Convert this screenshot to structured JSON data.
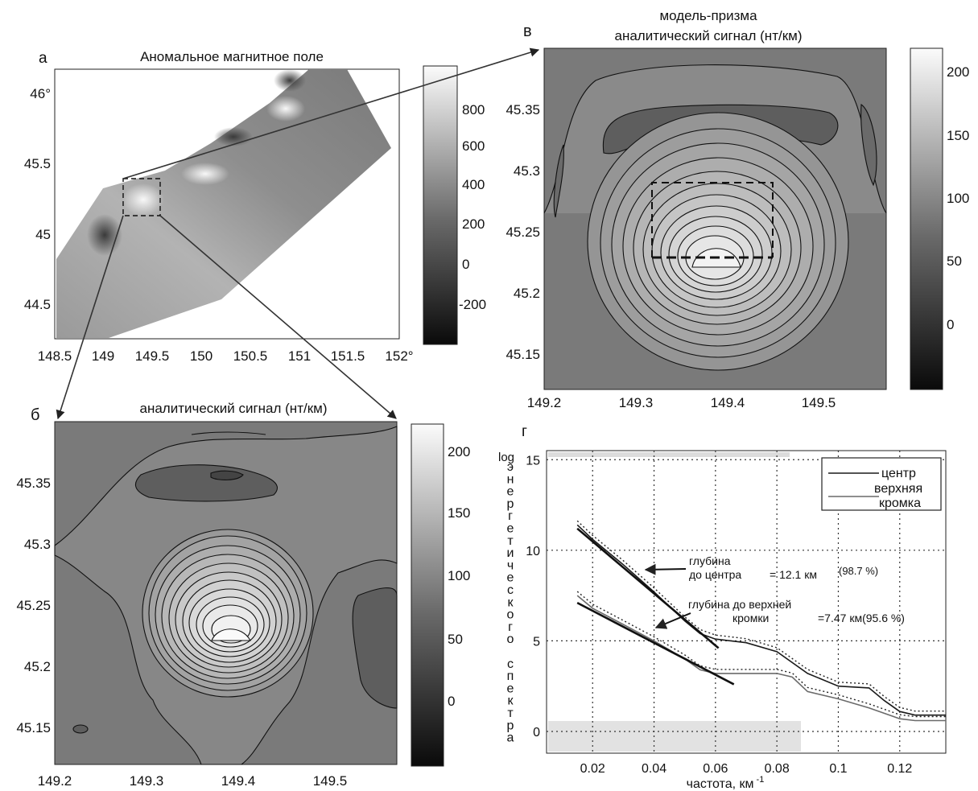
{
  "panel_a": {
    "letter": "а",
    "title": "Аномальное магнитное поле",
    "x_ticks": [
      "148.5",
      "149",
      "149.5",
      "150",
      "150.5",
      "151",
      "151.5",
      "152°"
    ],
    "y_ticks": [
      "46°",
      "45.5",
      "45",
      "44.5"
    ],
    "colorbar_ticks": [
      "800",
      "600",
      "400",
      "200",
      "0",
      "-200"
    ]
  },
  "panel_b": {
    "letter": "б",
    "title": "аналитический сигнал (нт/км)",
    "x_ticks": [
      "149.2",
      "149.3",
      "149.4",
      "149.5"
    ],
    "y_ticks": [
      "45.35",
      "45.3",
      "45.25",
      "45.2",
      "45.15"
    ],
    "colorbar_ticks": [
      "200",
      "150",
      "100",
      "50",
      "0"
    ]
  },
  "panel_v": {
    "letter": "в",
    "title_line1": "модель-призма",
    "title_line2": "аналитический сигнал (нт/км)",
    "x_ticks": [
      "149.2",
      "149.3",
      "149.4",
      "149.5"
    ],
    "y_ticks": [
      "45.35",
      "45.3",
      "45.25",
      "45.2",
      "45.15"
    ],
    "colorbar_ticks": [
      "200",
      "150",
      "100",
      "50",
      "0"
    ]
  },
  "chart_data": {
    "type": "line",
    "panel_letter": "г",
    "xlabel": "частота, км",
    "xlabel_sup": "-1",
    "ylabel_prefix": "log",
    "ylabel_letters": [
      "э",
      "н",
      "е",
      "р",
      "г",
      "е",
      "т",
      "и",
      "ч",
      "е",
      "с",
      "к",
      "о",
      "г",
      "о",
      " ",
      "с",
      "п",
      "е",
      "к",
      "т",
      "р",
      "а"
    ],
    "xlim": [
      0.005,
      0.135
    ],
    "ylim": [
      -1.2,
      15.5
    ],
    "x_ticks": [
      0.02,
      0.04,
      0.06,
      0.08,
      0.1,
      0.12
    ],
    "x_tick_labels": [
      "0.02",
      "0.04",
      "0.06",
      "0.08",
      "0.1",
      "0.12"
    ],
    "y_ticks": [
      0,
      5,
      10,
      15
    ],
    "y_tick_labels": [
      "0",
      "5",
      "10",
      "15"
    ],
    "legend": {
      "center": "центр",
      "top_line1": "верхняя",
      "top_line2": "кромка",
      "position": "top-right"
    },
    "series": [
      {
        "name": "центр",
        "color": "#1a1a1a",
        "x": [
          0.015,
          0.02,
          0.03,
          0.04,
          0.05,
          0.055,
          0.06,
          0.07,
          0.08,
          0.09,
          0.1,
          0.11,
          0.115,
          0.12,
          0.125,
          0.13,
          0.135
        ],
        "y": [
          11.4,
          10.6,
          9.2,
          7.7,
          6.1,
          5.4,
          5.1,
          4.9,
          4.4,
          3.2,
          2.5,
          2.4,
          1.7,
          1.1,
          0.9,
          0.9,
          0.9
        ]
      },
      {
        "name": "верхняя кромка",
        "color": "#6a6a6a",
        "x": [
          0.015,
          0.02,
          0.03,
          0.04,
          0.05,
          0.055,
          0.06,
          0.065,
          0.07,
          0.08,
          0.085,
          0.09,
          0.1,
          0.11,
          0.12,
          0.125,
          0.13,
          0.135
        ],
        "y": [
          7.5,
          6.8,
          5.9,
          5.0,
          4.0,
          3.4,
          3.2,
          3.2,
          3.2,
          3.2,
          3.0,
          2.2,
          1.8,
          1.3,
          0.7,
          0.6,
          0.6,
          0.6
        ]
      }
    ],
    "fit_lines": [
      {
        "x": [
          0.015,
          0.061
        ],
        "y": [
          11.2,
          4.6
        ]
      },
      {
        "x": [
          0.015,
          0.066
        ],
        "y": [
          7.1,
          2.6
        ]
      }
    ],
    "annotations": {
      "center_line1": "глубина",
      "center_line2": "до центра",
      "center_value": "= 12.1 км",
      "center_pct": "(98.7 %)",
      "top_line1": "глубина до верхней",
      "top_line2": "кромки",
      "top_value": "=7.47 км(95.6 %)"
    }
  }
}
